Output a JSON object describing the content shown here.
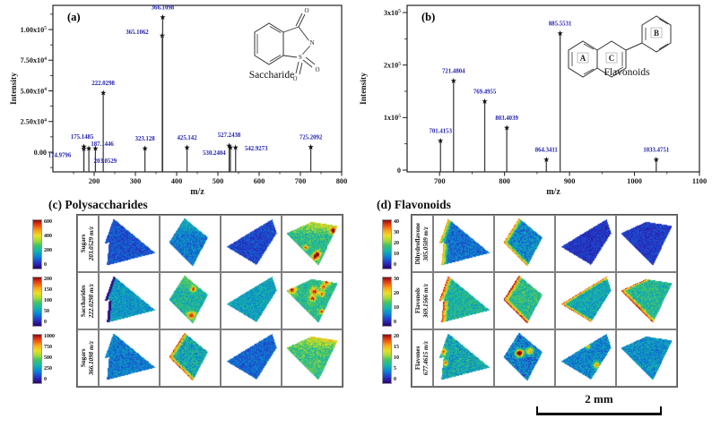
{
  "chart_data": [
    {
      "type": "stem",
      "panel": "a",
      "tag": "(a)",
      "xlabel": "m/z",
      "ylabel": "Intensity",
      "annotation": "Saccharide",
      "xlim": [
        100,
        800
      ],
      "xticks": [
        200,
        300,
        400,
        500,
        600,
        700,
        800
      ],
      "yticks": [
        {
          "label": "1.00x10^5",
          "v": 100000
        },
        {
          "label": "7.50x10^4",
          "v": 75000
        },
        {
          "label": "5.00x10^4",
          "v": 50000
        },
        {
          "label": "2.50x10^4",
          "v": 25000
        },
        {
          "label": "0.00",
          "v": 0
        }
      ],
      "peaks": [
        {
          "mz": 174.9796,
          "i": 2500,
          "label": "174.9796",
          "dx": -27,
          "dy": 13
        },
        {
          "mz": 175.1485,
          "i": 4500,
          "label": "175.1485",
          "dx": -2,
          "dy": -5
        },
        {
          "mz": 187.1446,
          "i": 3000,
          "label": "187.1446",
          "dx": 15,
          "dy": 1
        },
        {
          "mz": 203.0529,
          "i": 3000,
          "label": "203.0529",
          "dx": 11,
          "dy": 20
        },
        {
          "mz": 222.0298,
          "i": 48000,
          "label": "222.0298",
          "dx": 0,
          "dy": -5
        },
        {
          "mz": 323.128,
          "i": 3000,
          "label": "323.128",
          "dx": 0,
          "dy": -5
        },
        {
          "mz": 365.1062,
          "i": 95000,
          "label": "365.1062",
          "dx": -28,
          "dy": 2
        },
        {
          "mz": 366.1098,
          "i": 110000,
          "label": "366.1098",
          "dx": 0,
          "dy": -5
        },
        {
          "mz": 425.142,
          "i": 3500,
          "label": "425.142",
          "dx": 0,
          "dy": -5
        },
        {
          "mz": 527.2438,
          "i": 5000,
          "label": "527.2438",
          "dx": 0,
          "dy": -6
        },
        {
          "mz": 530.2404,
          "i": 3500,
          "label": "530.2404",
          "dx": -18,
          "dy": 12
        },
        {
          "mz": 542.9273,
          "i": 3500,
          "label": "542.9273",
          "dx": 23,
          "dy": 7
        },
        {
          "mz": 725.2092,
          "i": 4000,
          "label": "725.2092",
          "dx": 0,
          "dy": -5
        }
      ]
    },
    {
      "type": "stem",
      "panel": "b",
      "tag": "(b)",
      "xlabel": "m/z",
      "ylabel": "Intensity",
      "annotation": "Flavonoids",
      "xlim": [
        650,
        1100
      ],
      "xticks": [
        700,
        800,
        900,
        1000,
        1100
      ],
      "yticks": [
        {
          "label": "3x10^5",
          "v": 300000
        },
        {
          "label": "2x10^5",
          "v": 200000
        },
        {
          "label": "1x10^5",
          "v": 100000
        },
        {
          "label": "0",
          "v": 0
        }
      ],
      "peaks": [
        {
          "mz": 701.4153,
          "i": 55000,
          "label": "701.4153",
          "dx": 0,
          "dy": -5
        },
        {
          "mz": 721.4804,
          "i": 170000,
          "label": "721.4804",
          "dx": 0,
          "dy": -5
        },
        {
          "mz": 769.4955,
          "i": 130000,
          "label": "769.4955",
          "dx": 0,
          "dy": -5
        },
        {
          "mz": 803.4039,
          "i": 80000,
          "label": "803.4039",
          "dx": 0,
          "dy": -5
        },
        {
          "mz": 864.3411,
          "i": 20000,
          "label": "864.3411",
          "dx": 0,
          "dy": -5
        },
        {
          "mz": 885.5531,
          "i": 260000,
          "label": "885.5531",
          "dx": 0,
          "dy": -5
        },
        {
          "mz": 1033.4751,
          "i": 20000,
          "label": "1033.4751",
          "dx": 0,
          "dy": -5
        }
      ]
    }
  ],
  "figure": {
    "colors": {
      "peak_label": "#1f1fae",
      "axis": "#1a1a1a"
    },
    "structures": {
      "a": {
        "label": "Saccharide",
        "atoms": {
          "o_top": "O",
          "n": "N",
          "s": "S",
          "o_right": "O",
          "o_bottom": "O"
        }
      },
      "b": {
        "label": "Flavonoids",
        "rings": [
          "A",
          "C",
          "B"
        ]
      }
    },
    "panel_c": {
      "title": "(c) Polysaccharides",
      "rows": [
        {
          "name": "Sugars",
          "mz": "203.0529 m/z",
          "cbar": [
            "600",
            "400",
            "200",
            "0"
          ],
          "cells": [
            {
              "s": 0,
              "b": 0.17,
              "v": 0.08
            },
            {
              "s": 1,
              "b": 0.24,
              "v": 0.1,
              "t": "g"
            },
            {
              "s": 2,
              "b": 0.15,
              "v": 0.07
            },
            {
              "s": 3,
              "b": 0.42,
              "v": 0.13,
              "t": "w",
              "p": 4
            }
          ]
        },
        {
          "name": "Saccharides",
          "mz": "222.0298 m/z",
          "cbar": [
            "200",
            "150",
            "100",
            "50",
            "0"
          ],
          "cells": [
            {
              "s": 0,
              "b": 0.3,
              "v": 0.1,
              "e": "dark"
            },
            {
              "s": 1,
              "b": 0.38,
              "v": 0.12,
              "t": "g",
              "p": 2
            },
            {
              "s": 2,
              "b": 0.32,
              "v": 0.1
            },
            {
              "s": 3,
              "b": 0.42,
              "v": 0.12,
              "p": 7
            }
          ]
        },
        {
          "name": "Sugars",
          "mz": "366.1098 m/z",
          "cbar": [
            "1000",
            "750",
            "500",
            "250",
            "0"
          ],
          "cells": [
            {
              "s": 0,
              "b": 0.24,
              "v": 0.1
            },
            {
              "s": 1,
              "b": 0.34,
              "v": 0.14,
              "e": "lw"
            },
            {
              "s": 2,
              "b": 0.2,
              "v": 0.08
            },
            {
              "s": 3,
              "b": 0.45,
              "v": 0.14,
              "t": "w"
            }
          ]
        }
      ]
    },
    "panel_d": {
      "title": "(d) Flavonoids",
      "scalebar_label": "2 mm",
      "rows": [
        {
          "name": "Dihydroflavone",
          "mz": "305.0509 m/z",
          "cbar": [
            "40",
            "30",
            "20",
            "10",
            "0"
          ],
          "cells": [
            {
              "s": 0,
              "b": 0.22,
              "v": 0.1,
              "e": "lw"
            },
            {
              "s": 1,
              "b": 0.26,
              "v": 0.12,
              "e": "lw"
            },
            {
              "s": 2,
              "b": 0.12,
              "v": 0.06
            },
            {
              "s": 3,
              "b": 0.13,
              "v": 0.06
            }
          ]
        },
        {
          "name": "Flavonols",
          "mz": "369.1566 m/z",
          "cbar": [
            "30",
            "20",
            "10",
            "0"
          ],
          "cells": [
            {
              "s": 0,
              "b": 0.38,
              "v": 0.12,
              "e": "lw"
            },
            {
              "s": 1,
              "b": 0.42,
              "v": 0.13,
              "e": "lw"
            },
            {
              "s": 2,
              "b": 0.34,
              "v": 0.11,
              "e": "lw"
            },
            {
              "s": 3,
              "b": 0.4,
              "v": 0.13,
              "e": "lw"
            }
          ]
        },
        {
          "name": "Flavones",
          "mz": "677.4615 m/z",
          "cbar": [
            "20",
            "15",
            "10",
            "5",
            "0"
          ],
          "cells": [
            {
              "s": 0,
              "b": 0.34,
              "v": 0.14,
              "p": 2
            },
            {
              "s": 1,
              "b": 0.24,
              "v": 0.14,
              "p": 3
            },
            {
              "s": 2,
              "b": 0.26,
              "v": 0.11,
              "p": 2
            },
            {
              "s": 3,
              "b": 0.28,
              "v": 0.11
            }
          ]
        }
      ]
    }
  }
}
